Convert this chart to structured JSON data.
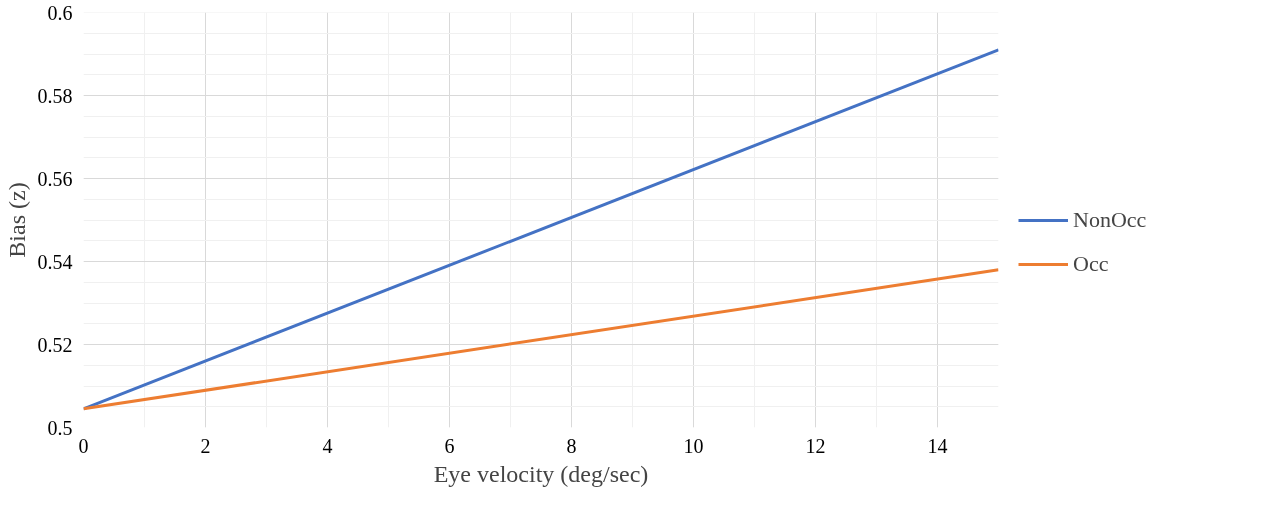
{
  "chart_data": {
    "type": "line",
    "xlabel": "Eye velocity (deg/sec)",
    "ylabel": "Bias (z)",
    "x": [
      0,
      15
    ],
    "series": [
      {
        "name": "NonOcc",
        "color": "#4472c4",
        "values": [
          0.5045,
          0.591
        ]
      },
      {
        "name": "Occ",
        "color": "#ed7d31",
        "values": [
          0.5045,
          0.538
        ]
      }
    ],
    "xlim": [
      0,
      15
    ],
    "xticks": [
      0,
      2,
      4,
      6,
      8,
      10,
      12,
      14
    ],
    "ylim": [
      0.5,
      0.6
    ],
    "yticks": [
      0.5,
      0.52,
      0.54,
      0.56,
      0.58,
      0.6
    ],
    "grid": true,
    "legend": "right",
    "marker": "none",
    "line_style": "solid"
  }
}
